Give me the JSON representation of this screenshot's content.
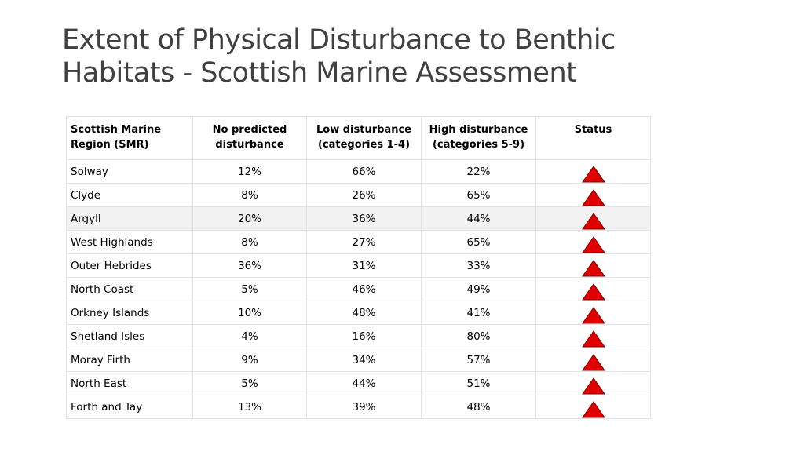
{
  "title": {
    "line1": "Extent of Physical Disturbance to Benthic",
    "line2": "Habitats -  Scottish Marine Assessment"
  },
  "table": {
    "headers": [
      {
        "line1": "Scottish Marine",
        "line2": "Region (SMR)"
      },
      {
        "line1": "No predicted",
        "line2": "disturbance"
      },
      {
        "line1": "Low disturbance",
        "line2": "(categories 1-4)"
      },
      {
        "line1": "High disturbance",
        "line2": "(categories 5-9)"
      },
      {
        "line1": "Status",
        "line2": ""
      }
    ],
    "rows": [
      {
        "region": "Solway",
        "none": "12%",
        "low": "66%",
        "high": "22%",
        "status_icon": "red-triangle-up"
      },
      {
        "region": "Clyde",
        "none": "8%",
        "low": "26%",
        "high": "65%",
        "status_icon": "red-triangle-up"
      },
      {
        "region": "Argyll",
        "none": "20%",
        "low": "36%",
        "high": "44%",
        "status_icon": "red-triangle-up"
      },
      {
        "region": "West Highlands",
        "none": "8%",
        "low": "27%",
        "high": "65%",
        "status_icon": "red-triangle-up"
      },
      {
        "region": "Outer Hebrides",
        "none": "36%",
        "low": "31%",
        "high": "33%",
        "status_icon": "red-triangle-up"
      },
      {
        "region": "North Coast",
        "none": "5%",
        "low": "46%",
        "high": "49%",
        "status_icon": "red-triangle-up"
      },
      {
        "region": "Orkney Islands",
        "none": "10%",
        "low": "48%",
        "high": "41%",
        "status_icon": "red-triangle-up"
      },
      {
        "region": "Shetland Isles",
        "none": "4%",
        "low": "16%",
        "high": "80%",
        "status_icon": "red-triangle-up"
      },
      {
        "region": "Moray Firth",
        "none": "9%",
        "low": "34%",
        "high": "57%",
        "status_icon": "red-triangle-up"
      },
      {
        "region": "North East",
        "none": "5%",
        "low": "44%",
        "high": "51%",
        "status_icon": "red-triangle-up"
      },
      {
        "region": "Forth and Tay",
        "none": "13%",
        "low": "39%",
        "high": "48%",
        "status_icon": "red-triangle-up"
      }
    ]
  },
  "colors": {
    "title_text": "#404040",
    "status_triangle_fill": "#e00000",
    "status_triangle_stroke": "#7a0000",
    "grid_line": "#e3e3e3",
    "shaded_row": "#f2f2f2"
  }
}
